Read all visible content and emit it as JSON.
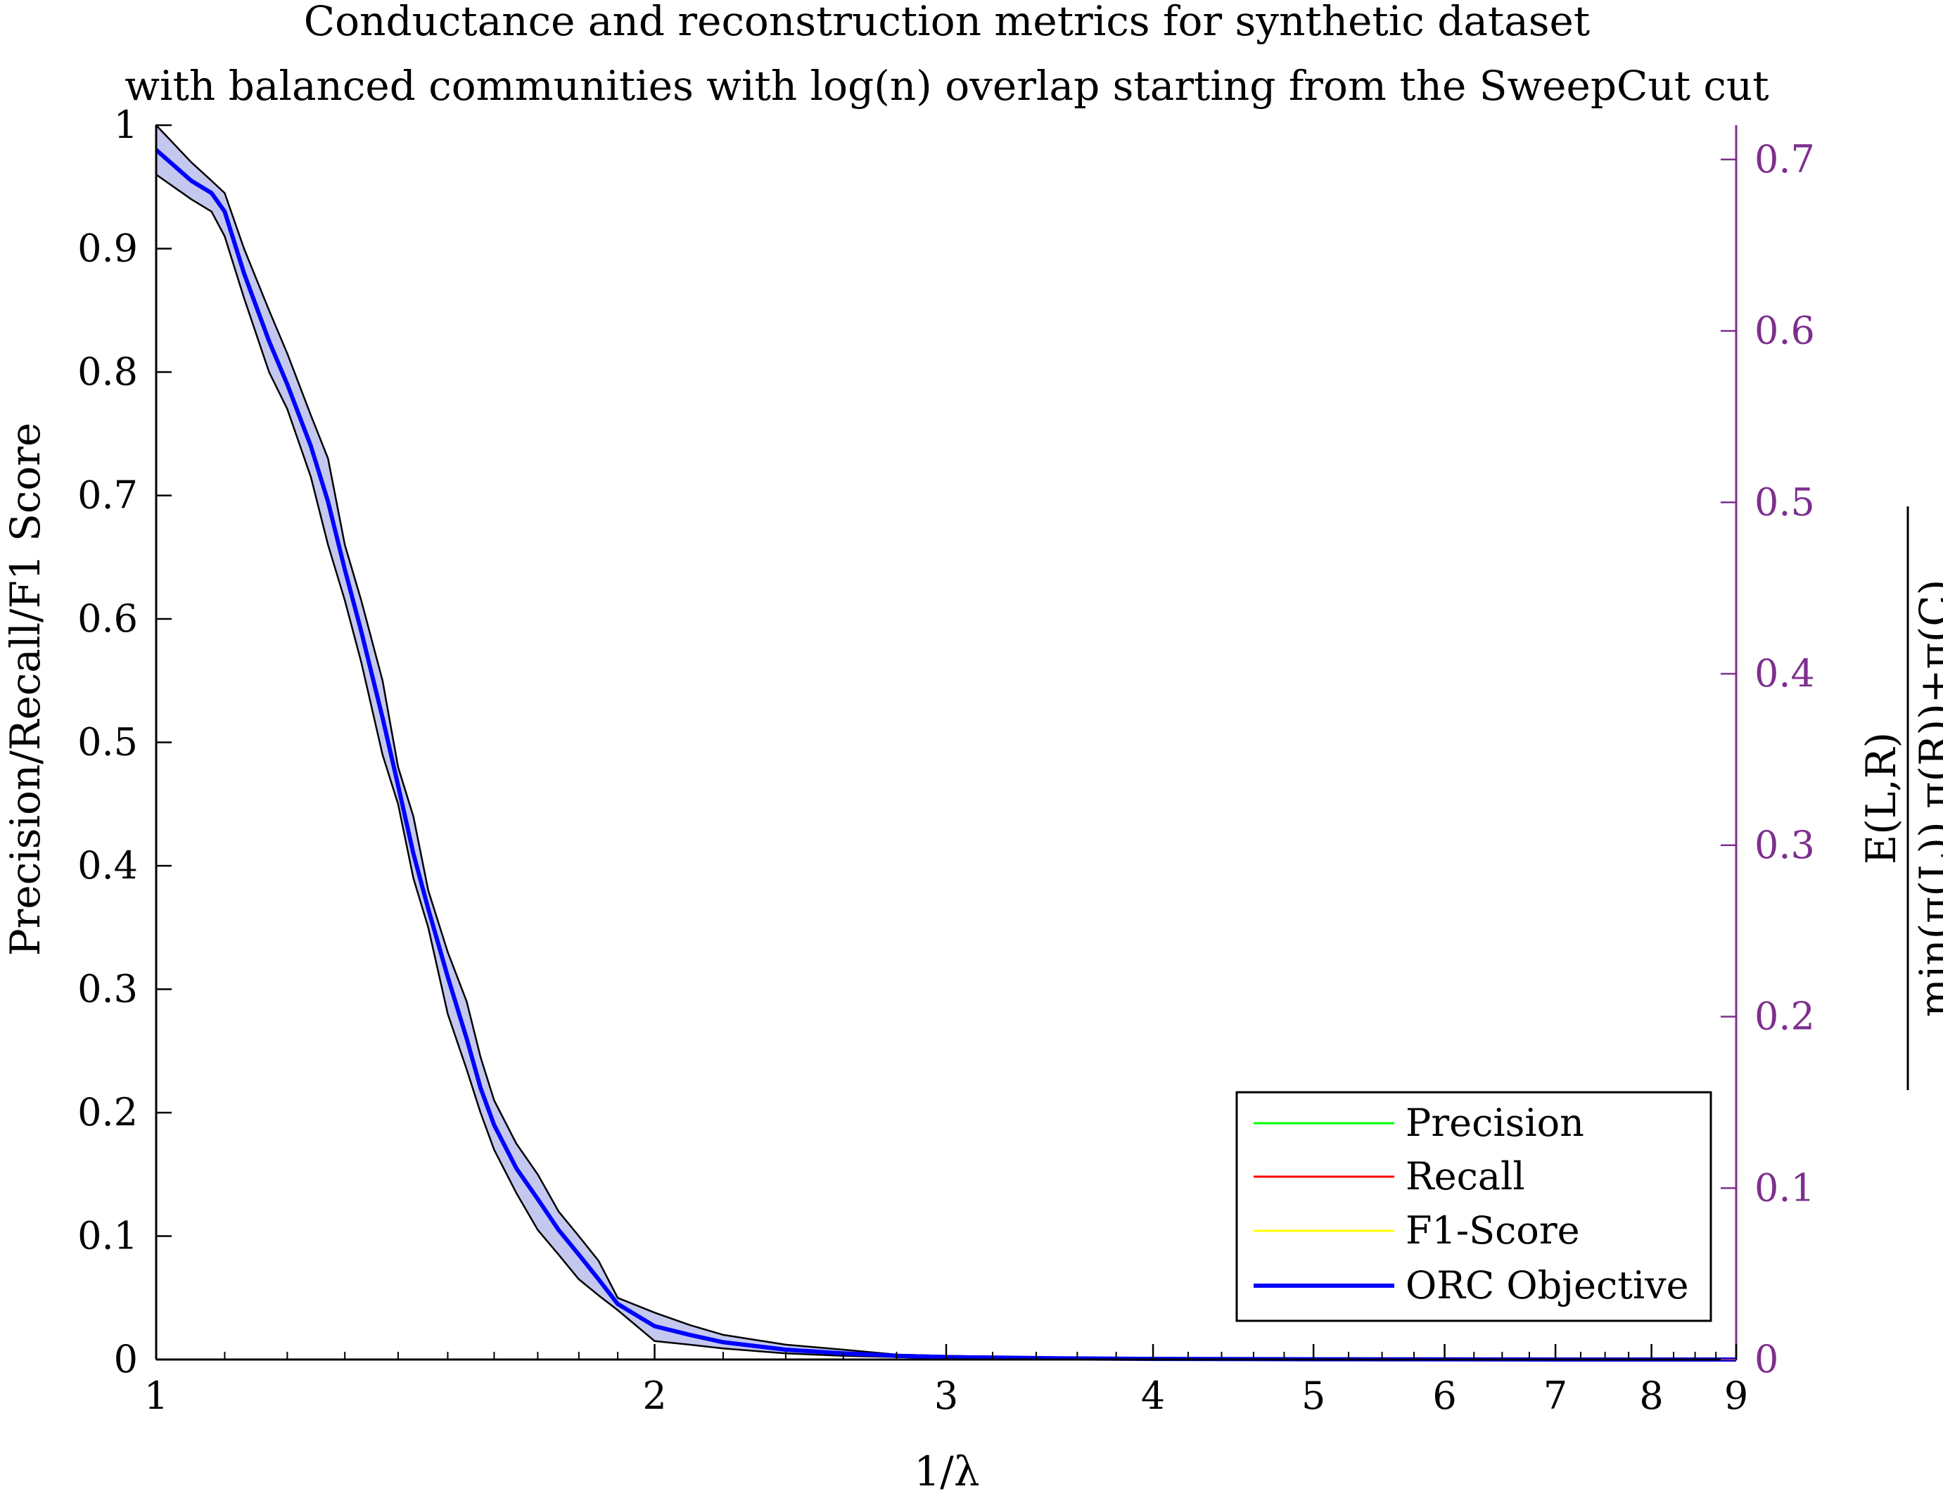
{
  "colors": {
    "left_axis": "#000000",
    "right_axis": "#7E2F8E",
    "precision": "#00FF00",
    "recall": "#FF0000",
    "f1": "#FFFF00",
    "orc": "#0000FF",
    "band_fill": "#C4C8EE",
    "band_edge": "#000000"
  },
  "chart_data": {
    "type": "line",
    "title": [
      "Conductance and reconstruction metrics for synthetic dataset",
      "with balanced communities with log(n) overlap starting from the SweepCut cut"
    ],
    "xlabel": "1/λ",
    "xscale": "log",
    "xlim": [
      1,
      9
    ],
    "xticks": [
      1,
      2,
      3,
      4,
      5,
      6,
      7,
      8,
      9
    ],
    "ylabel_left": "Precision/Recall/F1 Score",
    "ylim_left": [
      0,
      1
    ],
    "yticks_left": [
      "0",
      "0.1",
      "0.2",
      "0.3",
      "0.4",
      "0.5",
      "0.6",
      "0.7",
      "0.8",
      "0.9",
      "1"
    ],
    "ylabel_right": {
      "numerator": "E(L,R)",
      "denominator": "min(π(L)),π(R))+π(C)"
    },
    "ylim_right": [
      0,
      0.72
    ],
    "yticks_right": [
      "0",
      "0.1",
      "0.2",
      "0.3",
      "0.4",
      "0.5",
      "0.6",
      "0.7"
    ],
    "legend": {
      "location": "bottom-right",
      "entries": [
        "Precision",
        "Recall",
        "F1-Score",
        "ORC Objective"
      ]
    },
    "series": [
      {
        "name": "ORC Objective",
        "axis": "left",
        "x": [
          1.0,
          1.05,
          1.08,
          1.1,
          1.13,
          1.17,
          1.2,
          1.24,
          1.27,
          1.3,
          1.33,
          1.37,
          1.4,
          1.43,
          1.46,
          1.5,
          1.54,
          1.57,
          1.6,
          1.65,
          1.7,
          1.75,
          1.8,
          1.85,
          1.9,
          2.0,
          2.1,
          2.2,
          2.4,
          2.6,
          2.8,
          3.0,
          3.5,
          4.0,
          5.0,
          6.0,
          7.0,
          8.0,
          9.0
        ],
        "y": [
          0.98,
          0.955,
          0.945,
          0.93,
          0.88,
          0.825,
          0.79,
          0.74,
          0.695,
          0.64,
          0.59,
          0.52,
          0.465,
          0.41,
          0.365,
          0.31,
          0.26,
          0.22,
          0.19,
          0.155,
          0.13,
          0.105,
          0.085,
          0.065,
          0.045,
          0.027,
          0.02,
          0.014,
          0.008,
          0.005,
          0.003,
          0.002,
          0.001,
          0.0005,
          0.0002,
          0.0001,
          0.0,
          0.0,
          0.0
        ],
        "band_upper": [
          1.0,
          0.97,
          0.955,
          0.945,
          0.9,
          0.85,
          0.815,
          0.765,
          0.73,
          0.66,
          0.615,
          0.55,
          0.48,
          0.44,
          0.38,
          0.33,
          0.29,
          0.245,
          0.21,
          0.175,
          0.15,
          0.12,
          0.1,
          0.08,
          0.05,
          0.038,
          0.028,
          0.02,
          0.012,
          0.008,
          0.004,
          0.003,
          0.0015,
          0.0008,
          0.0003,
          0.0001,
          0.0,
          0.0,
          0.0
        ],
        "band_lower": [
          0.96,
          0.94,
          0.93,
          0.91,
          0.86,
          0.8,
          0.77,
          0.715,
          0.66,
          0.615,
          0.565,
          0.49,
          0.45,
          0.39,
          0.35,
          0.28,
          0.235,
          0.2,
          0.17,
          0.135,
          0.105,
          0.085,
          0.065,
          0.052,
          0.04,
          0.015,
          0.012,
          0.009,
          0.005,
          0.003,
          0.002,
          0.001,
          0.0005,
          0.0002,
          0.0001,
          0.0,
          0.0,
          0.0,
          0.0
        ]
      },
      {
        "name": "Precision",
        "axis": "left",
        "x": [],
        "y": []
      },
      {
        "name": "Recall",
        "axis": "left",
        "x": [],
        "y": []
      },
      {
        "name": "F1-Score",
        "axis": "left",
        "x": [],
        "y": []
      }
    ]
  }
}
